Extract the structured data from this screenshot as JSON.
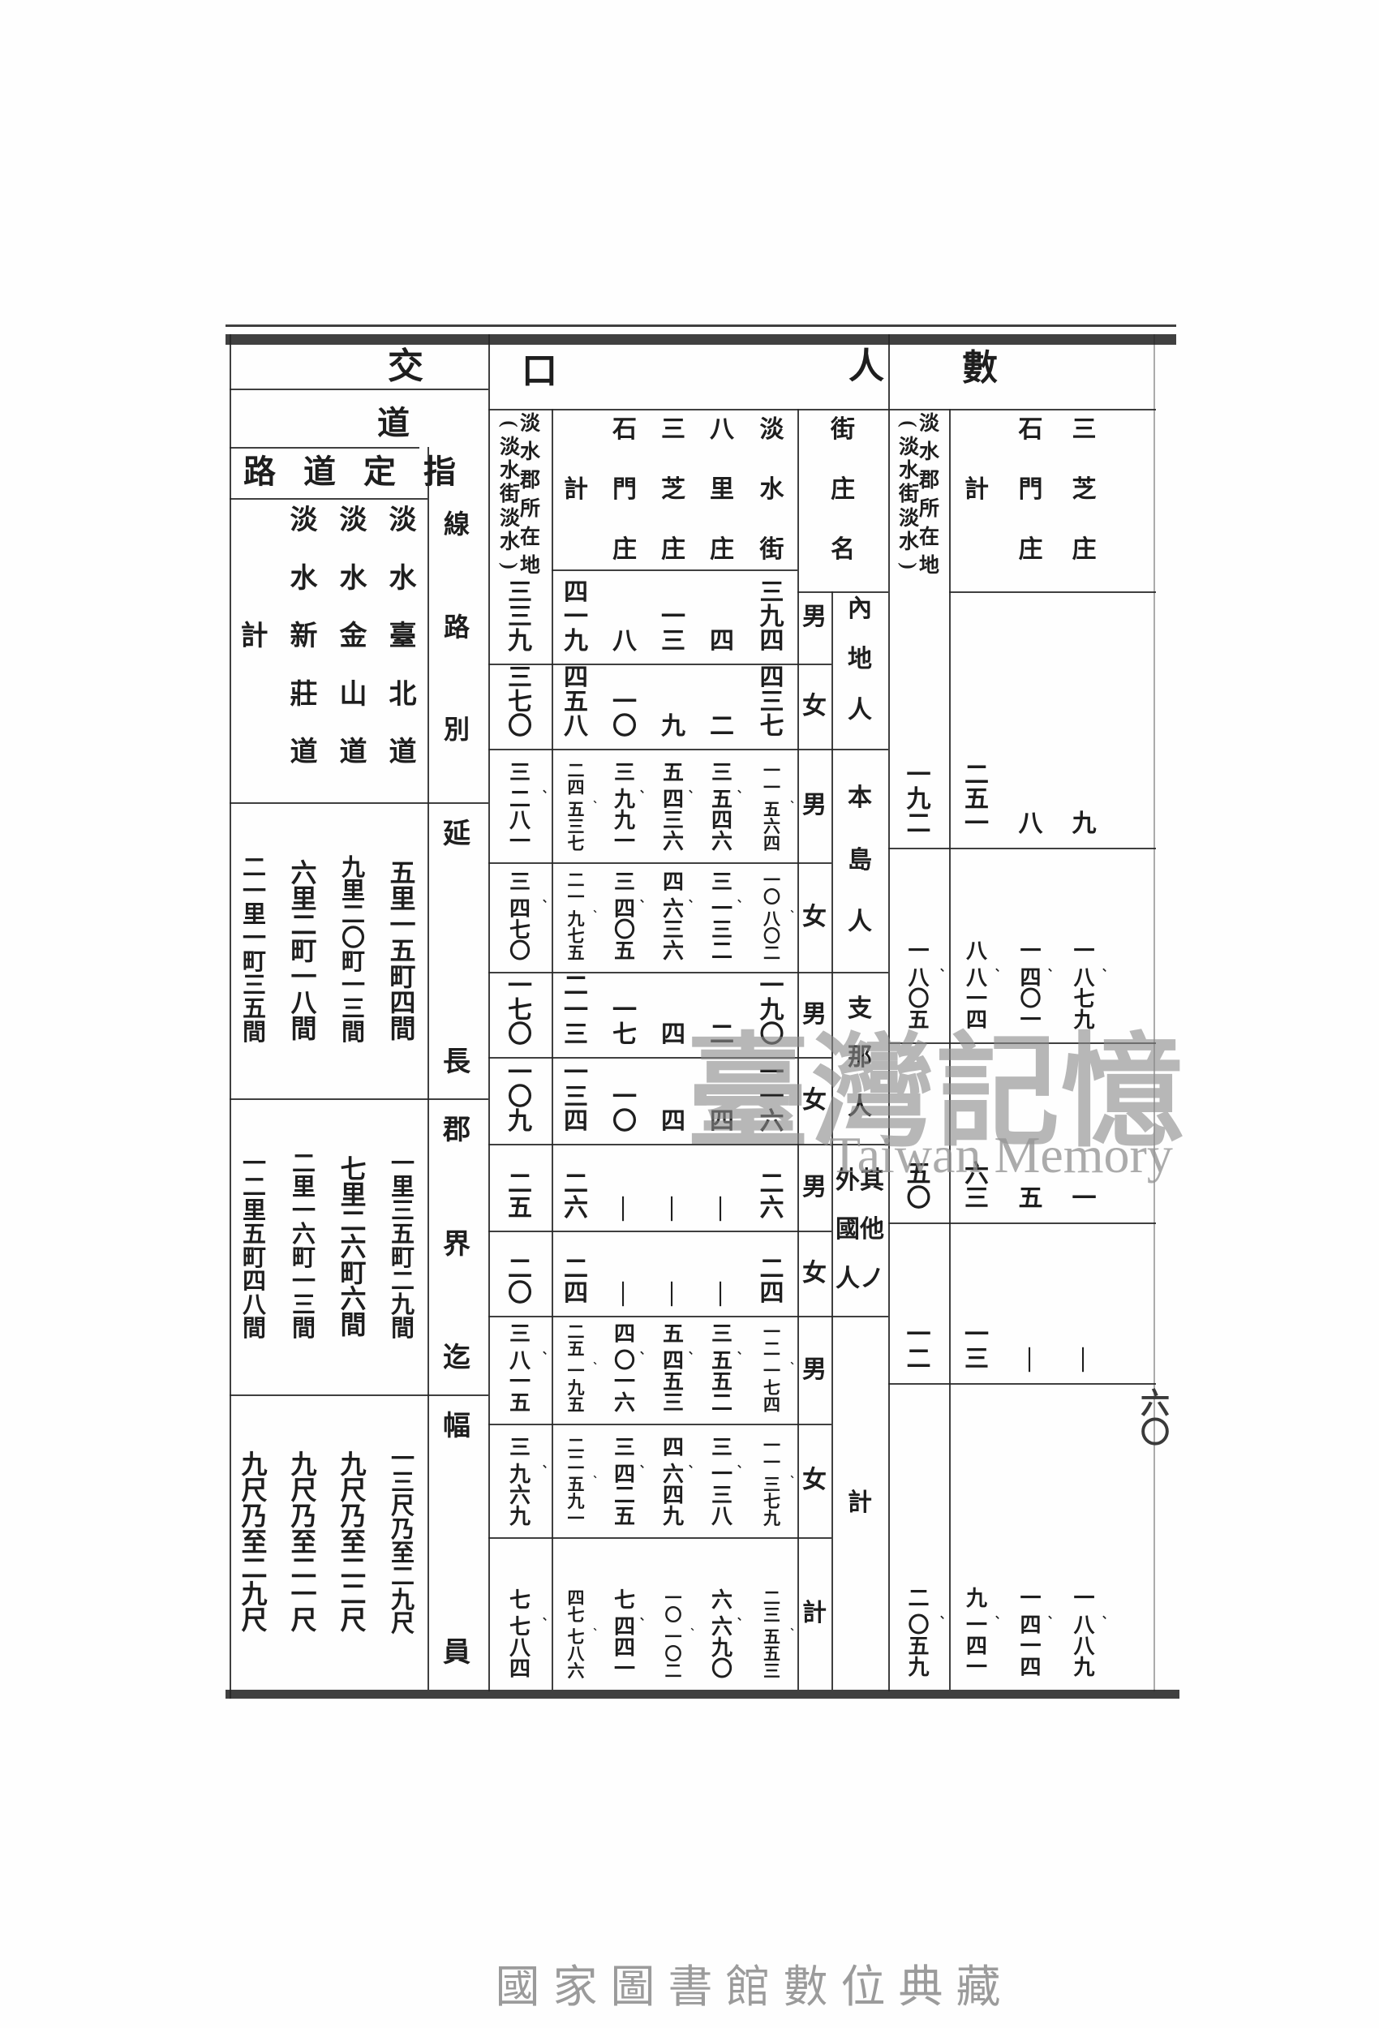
{
  "page": {
    "watermark_cjk": "臺灣記憶",
    "watermark_latin": "Taiwan Memory",
    "footer_caption": "國家圖書館數位典藏",
    "page_number": "六〇"
  },
  "traffic": {
    "section_title": "交",
    "subtitle": "道",
    "band_title": "指定道路",
    "col_group_label": "線路別",
    "roads_left_to_right": [
      "計",
      "淡水新莊道",
      "淡水金山道",
      "淡水臺北道"
    ],
    "rows": [
      {
        "label": "延長",
        "values_left_to_right": [
          "二一里一町三五間",
          "六里二町一八間",
          "九里二〇町一三間",
          "五里一五町四間"
        ]
      },
      {
        "label": "郡界迄",
        "values_left_to_right": [
          "一二里五町四八間",
          "二里一六町一三間",
          "七里二六町六間",
          "一里三五町二九間"
        ]
      },
      {
        "label": "幅員",
        "values_left_to_right": [
          "九尺乃至二九尺",
          "九尺乃至二一尺",
          "九尺乃至二二尺",
          "一三尺乃至二九尺"
        ]
      }
    ]
  },
  "population": {
    "section_title_right": "人",
    "section_title_left": "口",
    "stub_header": "街庄名",
    "location_note_lines": [
      "淡水郡所在地",
      "(淡水街淡水)"
    ],
    "columns_left_to_right": [
      "淡水郡所在地(淡水街淡水)",
      "計",
      "石門庄",
      "三芝庄",
      "八里庄",
      "淡水街"
    ],
    "town_headers": [
      "計",
      "石門庄",
      "三芝庄",
      "八里庄",
      "淡水街"
    ],
    "groups": [
      {
        "name": "內地人",
        "name_lines": [
          "內地人"
        ],
        "rows": [
          {
            "sex": "男",
            "values": [
              "三三九",
              "四一九",
              "八",
              "一三",
              "四",
              "三九四"
            ]
          },
          {
            "sex": "女",
            "values": [
              "三七〇",
              "四五八",
              "一〇",
              "九",
              "二",
              "四三七"
            ]
          }
        ]
      },
      {
        "name": "本島人",
        "name_lines": [
          "本島人"
        ],
        "rows": [
          {
            "sex": "男",
            "values": [
              "三、二八一",
              "二四、五三七",
              "三、九九一",
              "五、四三六",
              "三、五四六",
              "一一、五六四"
            ]
          },
          {
            "sex": "女",
            "values": [
              "三、四七〇",
              "二一、九七五",
              "三、四〇五",
              "四、六三六",
              "三、一三二",
              "一〇、八〇二"
            ]
          }
        ]
      },
      {
        "name": "支那人",
        "name_lines": [
          "支那人"
        ],
        "rows": [
          {
            "sex": "男",
            "values": [
              "一七〇",
              "二一三",
              "一七",
              "四",
              "二",
              "一九〇"
            ]
          },
          {
            "sex": "女",
            "values": [
              "一〇九",
              "一三四",
              "一〇",
              "四",
              "四",
              "一一六"
            ]
          }
        ]
      },
      {
        "name": "其他ノ外國人",
        "name_lines": [
          "其他ノ",
          "外國人"
        ],
        "rows": [
          {
            "sex": "男",
            "values": [
              "二五",
              "二六",
              "—",
              "—",
              "—",
              "二六"
            ]
          },
          {
            "sex": "女",
            "values": [
              "二〇",
              "二四",
              "—",
              "—",
              "—",
              "二四"
            ]
          }
        ]
      },
      {
        "name": "計",
        "name_lines": [
          "計"
        ],
        "rows": [
          {
            "sex": "男",
            "values": [
              "三、八一五",
              "二五、一九五",
              "四、〇一六",
              "五、四五三",
              "三、五五二",
              "一二、一七四"
            ]
          },
          {
            "sex": "女",
            "values": [
              "三、九六九",
              "二二、五九一",
              "三、四二五",
              "四、六四九",
              "三、一三八",
              "一一、三七九"
            ]
          },
          {
            "sex": "計",
            "values": [
              "七、七八四",
              "四七、七八六",
              "七、四四一",
              "一〇、一〇二",
              "六、六九〇",
              "二三、五五三"
            ]
          }
        ]
      }
    ]
  },
  "tail": {
    "section_title": "數",
    "location_note_lines": [
      "淡水郡所在地",
      "(淡水街淡水)"
    ],
    "columns_left_to_right": [
      "淡水郡所在地(淡水街淡水)",
      "計",
      "石門庄",
      "三芝庄"
    ],
    "town_headers": [
      "計",
      "石門庄",
      "三芝庄"
    ],
    "rows": [
      {
        "values": [
          "一九二",
          "二五一",
          "八",
          "九"
        ]
      },
      {
        "values": [
          "一、八〇五",
          "八、八一四",
          "一、四〇一",
          "一、八七九"
        ]
      },
      {
        "values": [
          "五〇",
          "六三",
          "五",
          "一"
        ]
      },
      {
        "values": [
          "一二",
          "一三",
          "—",
          "—"
        ]
      },
      {
        "values": [
          "二、〇五九",
          "九、一四一",
          "一、四一四",
          "一、八八九"
        ]
      }
    ]
  }
}
